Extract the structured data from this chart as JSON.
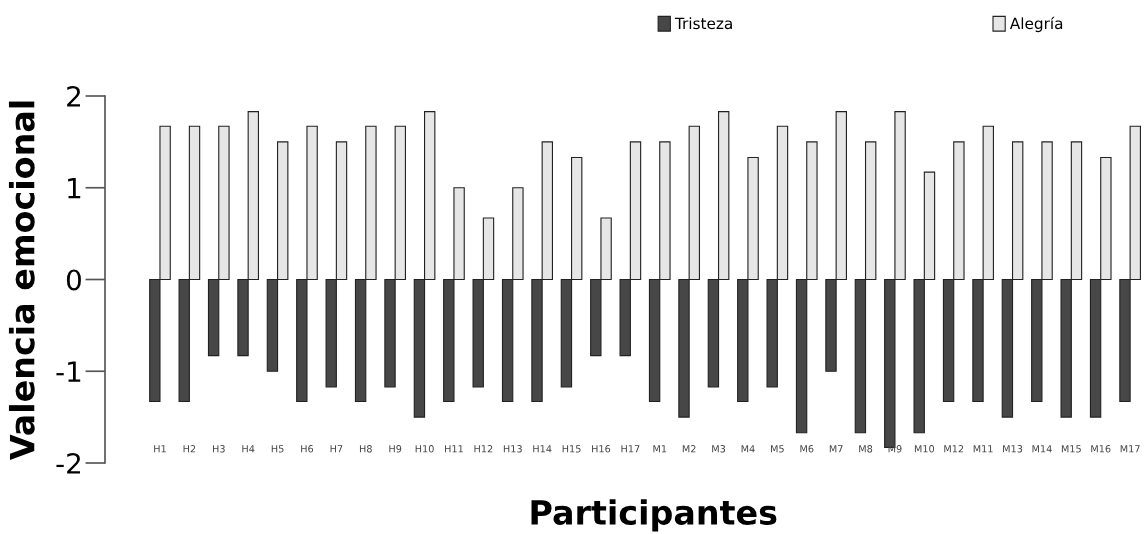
{
  "chart_data": {
    "type": "bar",
    "xlabel": "Participantes",
    "ylabel": "Valencia emocional",
    "categories": [
      "H1",
      "H2",
      "H3",
      "H4",
      "H5",
      "H6",
      "H7",
      "H8",
      "H9",
      "H10",
      "H11",
      "H12",
      "H13",
      "H14",
      "H15",
      "H16",
      "H17",
      "M1",
      "M2",
      "M3",
      "M4",
      "M5",
      "M6",
      "M7",
      "M8",
      "M9",
      "M10",
      "M12",
      "M11",
      "M13",
      "M14",
      "M15",
      "M16",
      "M17"
    ],
    "series": [
      {
        "name": "Tristeza",
        "color": "#474747",
        "values": [
          -1.33,
          -1.33,
          -0.83,
          -0.83,
          -1,
          -1.33,
          -1.17,
          -1.33,
          -1.17,
          -1.5,
          -1.33,
          -1.17,
          -1.33,
          -1.33,
          -1.17,
          -0.83,
          -0.83,
          -1.33,
          -1.5,
          -1.17,
          -1.33,
          -1.17,
          -1.67,
          -1,
          -1.67,
          -1.83,
          -1.67,
          -1.33,
          -1.33,
          -1.5,
          -1.33,
          -1.5,
          -1.5,
          -1.33
        ]
      },
      {
        "name": "Alegría",
        "color": "#e6e6e6",
        "values": [
          1.67,
          1.67,
          1.67,
          1.83,
          1.5,
          1.67,
          1.5,
          1.67,
          1.67,
          1.83,
          1,
          0.67,
          1,
          1.5,
          1.33,
          0.67,
          1.5,
          1.5,
          1.67,
          1.83,
          1.33,
          1.67,
          1.5,
          1.83,
          1.5,
          1.83,
          1.17,
          1.5,
          1.67,
          1.5,
          1.5,
          1.5,
          1.33,
          1.67
        ]
      }
    ],
    "ylim": [
      -2,
      2
    ],
    "yticks": [
      -2,
      -1,
      0,
      1,
      2
    ],
    "grid": false,
    "legend": "top right"
  }
}
